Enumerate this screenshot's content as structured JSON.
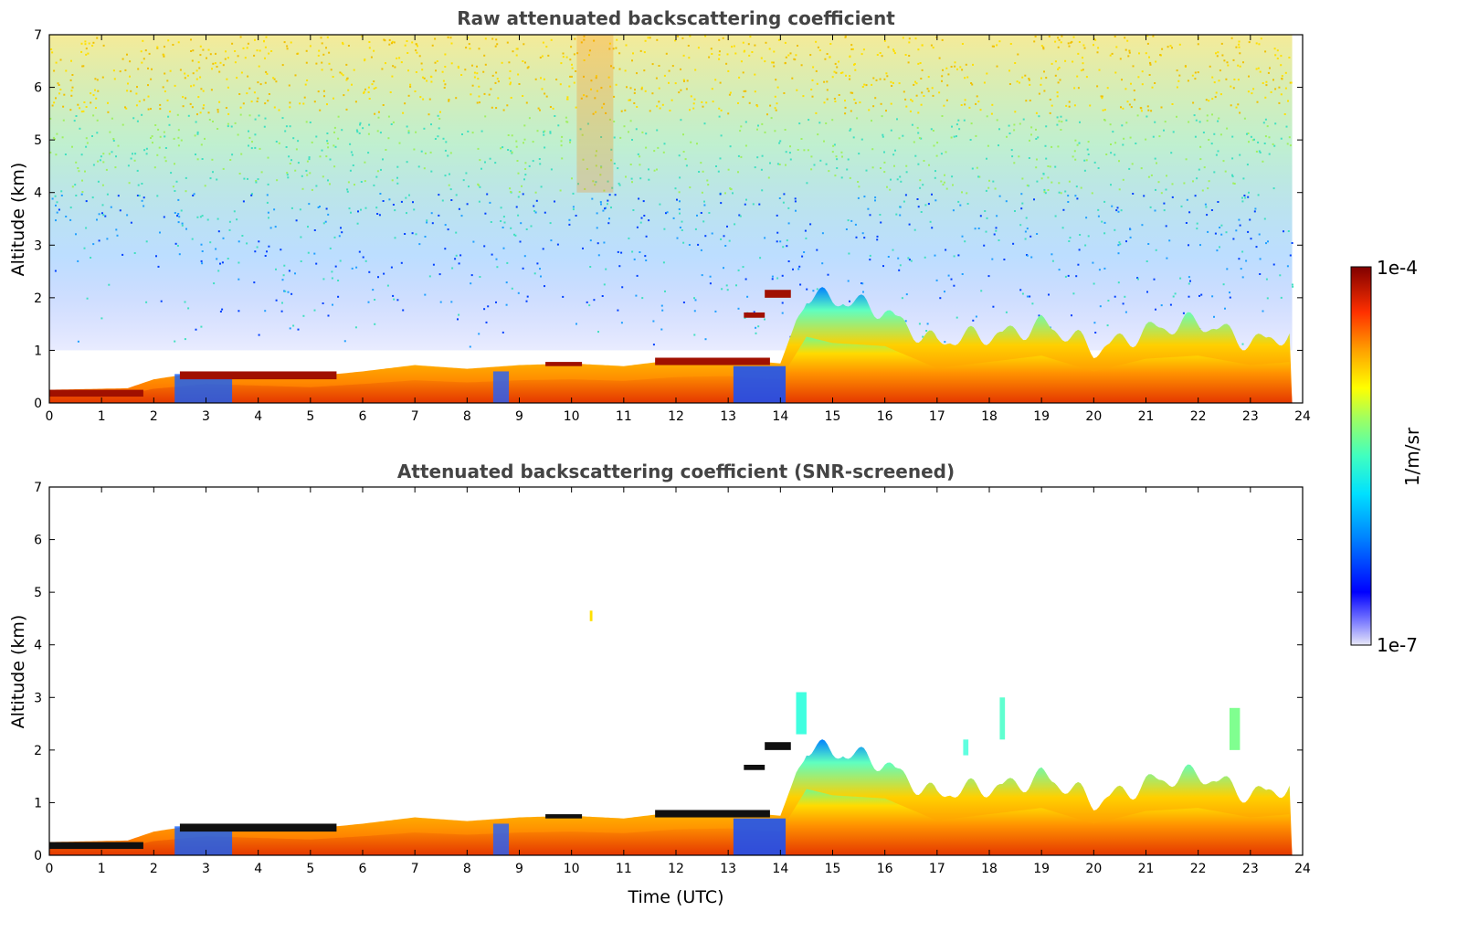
{
  "chart_data": [
    {
      "type": "heatmap",
      "title": "Raw attenuated backscattering coefficient",
      "xlabel": "",
      "ylabel": "Altitude (km)",
      "xlim": [
        0,
        24
      ],
      "ylim": [
        0,
        7
      ],
      "xticks": [
        "0",
        "1",
        "2",
        "3",
        "4",
        "5",
        "6",
        "7",
        "8",
        "9",
        "10",
        "11",
        "12",
        "13",
        "14",
        "15",
        "16",
        "17",
        "18",
        "19",
        "20",
        "21",
        "22",
        "23",
        "24"
      ],
      "yticks": [
        "0",
        "1",
        "2",
        "3",
        "4",
        "5",
        "6",
        "7"
      ],
      "boundary_layer_top_km": [
        [
          0,
          0.25
        ],
        [
          1.5,
          0.28
        ],
        [
          2,
          0.45
        ],
        [
          3,
          0.6
        ],
        [
          4,
          0.55
        ],
        [
          5,
          0.5
        ],
        [
          6,
          0.6
        ],
        [
          7,
          0.72
        ],
        [
          8,
          0.65
        ],
        [
          9,
          0.72
        ],
        [
          10,
          0.75
        ],
        [
          11,
          0.7
        ],
        [
          12,
          0.82
        ],
        [
          13,
          0.85
        ],
        [
          14,
          0.75
        ],
        [
          14.5,
          2.1
        ],
        [
          15,
          1.9
        ],
        [
          16,
          1.8
        ],
        [
          17,
          1.1
        ],
        [
          18,
          1.3
        ],
        [
          19,
          1.5
        ],
        [
          20,
          1.0
        ],
        [
          21,
          1.4
        ],
        [
          22,
          1.5
        ],
        [
          23,
          1.2
        ],
        [
          23.8,
          1.3
        ]
      ]
    },
    {
      "type": "heatmap",
      "title": "Attenuated backscattering coefficient (SNR-screened)",
      "xlabel": "Time (UTC)",
      "ylabel": "Altitude (km)",
      "xlim": [
        0,
        24
      ],
      "ylim": [
        0,
        7
      ],
      "xticks": [
        "0",
        "1",
        "2",
        "3",
        "4",
        "5",
        "6",
        "7",
        "8",
        "9",
        "10",
        "11",
        "12",
        "13",
        "14",
        "15",
        "16",
        "17",
        "18",
        "19",
        "20",
        "21",
        "22",
        "23",
        "24"
      ],
      "yticks": [
        "0",
        "1",
        "2",
        "3",
        "4",
        "5",
        "6",
        "7"
      ]
    }
  ],
  "colorbar": {
    "label": "1/m/sr",
    "max_label": "1e-4",
    "min_label": "1e-7",
    "colors": [
      "#e8e8f8",
      "#8080ff",
      "#0000ff",
      "#0060ff",
      "#00c0ff",
      "#40ffd0",
      "#a0ff60",
      "#ffff00",
      "#ffa000",
      "#ff4000",
      "#d00000",
      "#800000"
    ]
  }
}
